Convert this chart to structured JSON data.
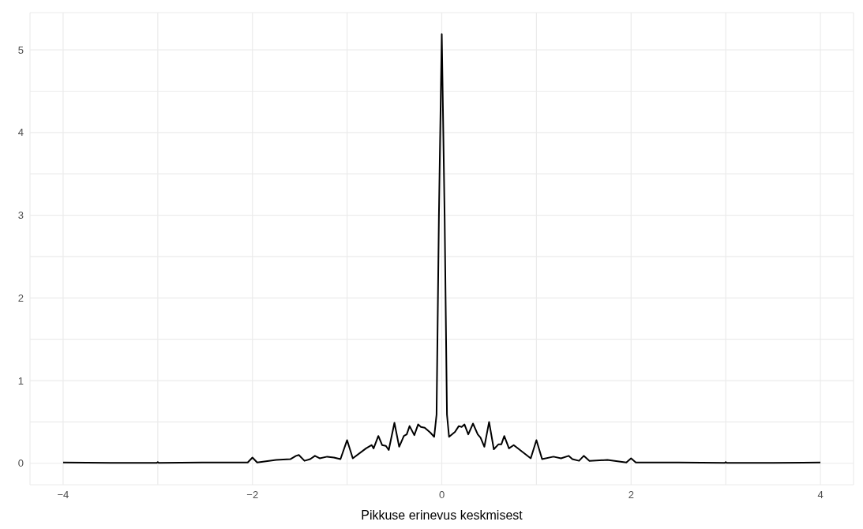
{
  "chart_data": {
    "type": "line",
    "xlabel": "Pikkuse erinevus keskmisest",
    "x": [
      -4,
      -3.5,
      -3.01,
      -3,
      -2.99,
      -2.5,
      -2.05,
      -2,
      -1.95,
      -1.75,
      -1.6,
      -1.54,
      -1.51,
      -1.45,
      -1.39,
      -1.34,
      -1.29,
      -1.21,
      -1.14,
      -1.07,
      -1,
      -0.94,
      -0.8,
      -0.74,
      -0.72,
      -0.67,
      -0.63,
      -0.59,
      -0.56,
      -0.5,
      -0.45,
      -0.4,
      -0.37,
      -0.34,
      -0.29,
      -0.25,
      -0.22,
      -0.18,
      -0.12,
      -0.08,
      -0.055,
      -0.03,
      0,
      0.03,
      0.055,
      0.077,
      0.14,
      0.18,
      0.21,
      0.24,
      0.28,
      0.33,
      0.38,
      0.41,
      0.45,
      0.5,
      0.55,
      0.6,
      0.63,
      0.66,
      0.71,
      0.76,
      0.94,
      1,
      1.06,
      1.18,
      1.26,
      1.34,
      1.38,
      1.45,
      1.5,
      1.56,
      1.75,
      1.95,
      2,
      2.05,
      2.5,
      2.99,
      3,
      3.01,
      3.5,
      4
    ],
    "series": [
      {
        "color": "#000000",
        "values": [
          0.01,
          0.005,
          0.005,
          0.015,
          0.005,
          0.01,
          0.01,
          0.07,
          0.01,
          0.04,
          0.05,
          0.09,
          0.1,
          0.03,
          0.05,
          0.09,
          0.06,
          0.08,
          0.07,
          0.05,
          0.28,
          0.06,
          0.18,
          0.22,
          0.18,
          0.33,
          0.22,
          0.21,
          0.16,
          0.49,
          0.2,
          0.33,
          0.35,
          0.45,
          0.34,
          0.47,
          0.44,
          0.43,
          0.37,
          0.32,
          0.59,
          3,
          5.19,
          3,
          0.59,
          0.32,
          0.38,
          0.45,
          0.44,
          0.47,
          0.35,
          0.48,
          0.35,
          0.31,
          0.2,
          0.5,
          0.17,
          0.23,
          0.23,
          0.33,
          0.18,
          0.22,
          0.06,
          0.28,
          0.05,
          0.08,
          0.06,
          0.09,
          0.05,
          0.03,
          0.09,
          0.03,
          0.04,
          0.01,
          0.06,
          0.01,
          0.01,
          0.005,
          0.015,
          0.005,
          0.005,
          0.01
        ]
      }
    ],
    "xlim": [
      -4.35,
      4.35
    ],
    "ylim": [
      -0.26,
      5.45
    ],
    "xticks": [
      {
        "value": -4,
        "label": "−4"
      },
      {
        "value": -3,
        "label": null
      },
      {
        "value": -2,
        "label": "−2"
      },
      {
        "value": -1,
        "label": null
      },
      0,
      {
        "value": 1,
        "label": null
      },
      2,
      {
        "value": 3,
        "label": null
      },
      4
    ],
    "yticks": [
      0,
      {
        "value": 0.5,
        "label": null
      },
      1,
      {
        "value": 1.5,
        "label": null
      },
      2,
      {
        "value": 2.5,
        "label": null
      },
      3,
      {
        "value": 3.5,
        "label": null
      },
      4,
      {
        "value": 4.5,
        "label": null
      },
      5
    ],
    "grid": true,
    "marker": "none",
    "line_style": "solid"
  }
}
